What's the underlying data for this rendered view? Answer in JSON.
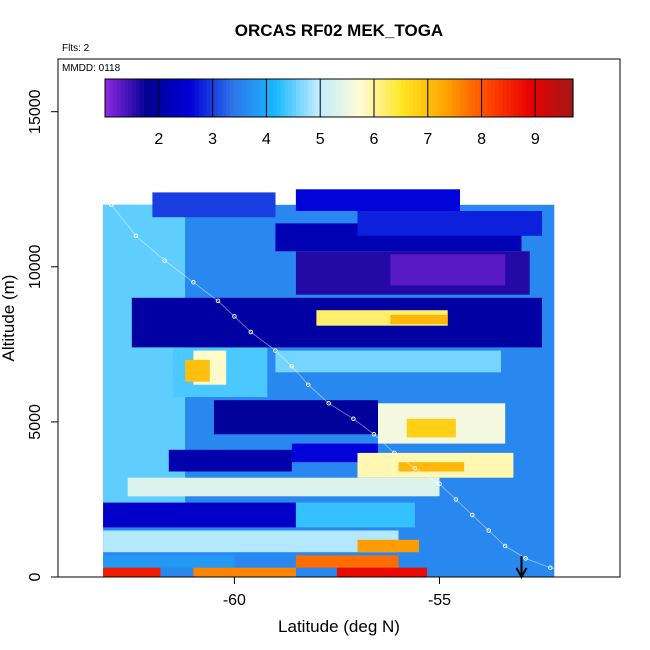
{
  "chart_data": {
    "type": "heatmap",
    "title": "ORCAS RF02 MEK_TOGA",
    "annotations": [
      "Flts: 2",
      "MMDD: 0118"
    ],
    "xlabel": "Latitude (deg N)",
    "ylabel": "Altitude (m)",
    "xlim": [
      -64.3,
      -50.6
    ],
    "ylim": [
      0,
      16700
    ],
    "x_ticks": [
      -60,
      -55
    ],
    "y_ticks": [
      0,
      5000,
      10000,
      15000
    ],
    "colorbar": {
      "range": [
        1,
        9.7
      ],
      "ticks": [
        2,
        3,
        4,
        5,
        6,
        7,
        8,
        9
      ],
      "colors": [
        "#8f2ae3",
        "#000090",
        "#0000d8",
        "#2f74e8",
        "#18b8ff",
        "#c0ecff",
        "#fffbd6",
        "#ffe620",
        "#ffa400",
        "#ff4800",
        "#e80000",
        "#a01818"
      ]
    },
    "flight_track": {
      "x": [
        -63.0,
        -62.4,
        -61.7,
        -61.0,
        -60.4,
        -60.0,
        -59.6,
        -59.0,
        -58.6,
        -58.2,
        -57.7,
        -57.1,
        -56.6,
        -56.1,
        -55.6,
        -55.0,
        -54.6,
        -54.2,
        -53.8,
        -53.4,
        -52.9,
        -52.3,
        -51.8,
        -51.5
      ],
      "y": [
        12000,
        11000,
        10200,
        9500,
        8900,
        8400,
        7900,
        7300,
        6800,
        6200,
        5600,
        5100,
        4600,
        4000,
        3500,
        3000,
        2500,
        2000,
        1500,
        1000,
        600,
        300,
        150,
        100
      ]
    },
    "marker_arrow_x": -53.0,
    "regions": [
      {
        "value": 3.6,
        "x": [
          -63.2,
          -52.2
        ],
        "y": [
          0,
          12000
        ]
      },
      {
        "value": 4.5,
        "x": [
          -63.2,
          -61.2
        ],
        "y": [
          2000,
          12000
        ]
      },
      {
        "value": 3.0,
        "x": [
          -62.0,
          -59.0
        ],
        "y": [
          11600,
          12400
        ]
      },
      {
        "value": 2.6,
        "x": [
          -58.5,
          -54.5
        ],
        "y": [
          11800,
          12500
        ]
      },
      {
        "value": 2.2,
        "x": [
          -59.0,
          -53.0
        ],
        "y": [
          10500,
          11400
        ]
      },
      {
        "value": 1.6,
        "x": [
          -58.5,
          -52.8
        ],
        "y": [
          9100,
          10500
        ]
      },
      {
        "value": 1.3,
        "x": [
          -56.2,
          -53.4
        ],
        "y": [
          9400,
          10400
        ]
      },
      {
        "value": 2.8,
        "x": [
          -57.0,
          -52.5
        ],
        "y": [
          11000,
          11800
        ]
      },
      {
        "value": 2.0,
        "x": [
          -62.5,
          -52.5
        ],
        "y": [
          7400,
          9000
        ]
      },
      {
        "value": 6.2,
        "x": [
          -58.0,
          -54.8
        ],
        "y": [
          8100,
          8600
        ]
      },
      {
        "value": 7.1,
        "x": [
          -56.2,
          -54.8
        ],
        "y": [
          8150,
          8450
        ]
      },
      {
        "value": 4.4,
        "x": [
          -61.5,
          -59.2
        ],
        "y": [
          5800,
          7400
        ]
      },
      {
        "value": 5.8,
        "x": [
          -61.0,
          -60.2
        ],
        "y": [
          6200,
          7300
        ]
      },
      {
        "value": 7.0,
        "x": [
          -61.2,
          -60.6
        ],
        "y": [
          6300,
          7000
        ]
      },
      {
        "value": 4.6,
        "x": [
          -59.0,
          -53.5
        ],
        "y": [
          6600,
          7300
        ]
      },
      {
        "value": 1.9,
        "x": [
          -60.5,
          -56.5
        ],
        "y": [
          4600,
          5700
        ]
      },
      {
        "value": 5.6,
        "x": [
          -56.5,
          -53.4
        ],
        "y": [
          4300,
          5600
        ]
      },
      {
        "value": 6.8,
        "x": [
          -55.8,
          -54.6
        ],
        "y": [
          4500,
          5100
        ]
      },
      {
        "value": 2.1,
        "x": [
          -61.6,
          -58.6
        ],
        "y": [
          3400,
          4100
        ]
      },
      {
        "value": 2.6,
        "x": [
          -58.6,
          -56.5
        ],
        "y": [
          3700,
          4300
        ]
      },
      {
        "value": 5.9,
        "x": [
          -57.0,
          -53.2
        ],
        "y": [
          3200,
          4000
        ]
      },
      {
        "value": 7.1,
        "x": [
          -56.0,
          -54.4
        ],
        "y": [
          3400,
          3700
        ]
      },
      {
        "value": 5.3,
        "x": [
          -62.6,
          -55.0
        ],
        "y": [
          2600,
          3200
        ]
      },
      {
        "value": 2.4,
        "x": [
          -63.2,
          -58.5
        ],
        "y": [
          1600,
          2400
        ]
      },
      {
        "value": 4.3,
        "x": [
          -58.5,
          -55.6
        ],
        "y": [
          1600,
          2400
        ]
      },
      {
        "value": 4.9,
        "x": [
          -63.2,
          -56.0
        ],
        "y": [
          800,
          1500
        ]
      },
      {
        "value": 7.4,
        "x": [
          -57.0,
          -55.5
        ],
        "y": [
          800,
          1200
        ]
      },
      {
        "value": 3.8,
        "x": [
          -63.2,
          -60.0
        ],
        "y": [
          300,
          700
        ]
      },
      {
        "value": 7.8,
        "x": [
          -58.5,
          -56.0
        ],
        "y": [
          300,
          700
        ]
      },
      {
        "value": 8.6,
        "x": [
          -63.2,
          -61.8
        ],
        "y": [
          0,
          300
        ]
      },
      {
        "value": 7.6,
        "x": [
          -61.0,
          -58.5
        ],
        "y": [
          0,
          300
        ]
      },
      {
        "value": 8.8,
        "x": [
          -57.5,
          -55.3
        ],
        "y": [
          0,
          300
        ]
      }
    ]
  }
}
